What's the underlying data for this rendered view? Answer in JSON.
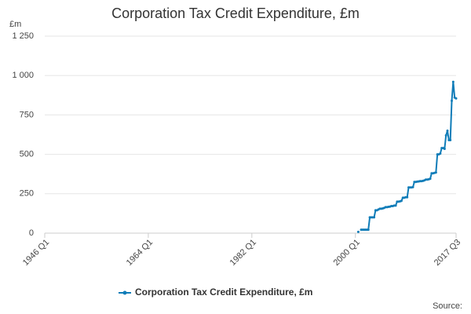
{
  "chart_data": {
    "type": "line",
    "title": "Corporation Tax Credit Expenditure, £m",
    "y_label": "£m",
    "source": "Source:",
    "x": [
      2000.5,
      2000.75,
      2001,
      2001.25,
      2001.5,
      2001.75,
      2002,
      2002.25,
      2002.5,
      2002.75,
      2003,
      2003.25,
      2003.5,
      2003.75,
      2004,
      2004.25,
      2004.5,
      2004.75,
      2005,
      2005.25,
      2005.5,
      2005.75,
      2006,
      2006.25,
      2006.5,
      2006.75,
      2007,
      2007.25,
      2007.5,
      2007.75,
      2008,
      2008.25,
      2008.5,
      2008.75,
      2009,
      2009.25,
      2009.5,
      2009.75,
      2010,
      2010.25,
      2010.5,
      2010.75,
      2011,
      2011.25,
      2011.5,
      2011.75,
      2012,
      2012.25,
      2012.5,
      2012.75,
      2013,
      2013.25,
      2013.5,
      2013.75,
      2014,
      2014.25,
      2014.5,
      2014.75,
      2015,
      2015.25,
      2015.5,
      2015.75,
      2016,
      2016.25,
      2016.5,
      2016.75,
      2017,
      2017.25,
      2017.5
    ],
    "series": [
      {
        "name": "Corporation Tax Credit Expenditure, £m",
        "color": "#0f7cb8",
        "values": [
          8,
          null,
          22,
          22,
          22,
          22,
          22,
          22,
          100,
          100,
          100,
          100,
          145,
          145,
          150,
          155,
          155,
          157,
          160,
          165,
          165,
          167,
          168,
          172,
          172,
          175,
          175,
          200,
          200,
          202,
          205,
          225,
          225,
          228,
          228,
          290,
          290,
          290,
          292,
          325,
          325,
          327,
          328,
          330,
          330,
          332,
          335,
          340,
          340,
          342,
          345,
          380,
          380,
          382,
          385,
          500,
          500,
          505,
          540,
          540,
          535,
          620,
          650,
          590,
          590,
          840,
          960,
          860,
          855
        ]
      }
    ],
    "xlim": [
      1946,
      2017.5
    ],
    "xticks": [
      {
        "value": 1946,
        "label": "1946 Q1"
      },
      {
        "value": 1964,
        "label": "1964 Q1"
      },
      {
        "value": 1982,
        "label": "1982 Q1"
      },
      {
        "value": 2000,
        "label": "2000 Q1"
      },
      {
        "value": 2017.5,
        "label": "2017 Q3"
      }
    ],
    "ylim": [
      0,
      1250
    ],
    "yticks": [
      0,
      250,
      500,
      750,
      {
        "value": 1000,
        "label": "1 000"
      },
      {
        "value": 1250,
        "label": "1 250"
      }
    ],
    "grid": true,
    "legend": "bottom"
  }
}
